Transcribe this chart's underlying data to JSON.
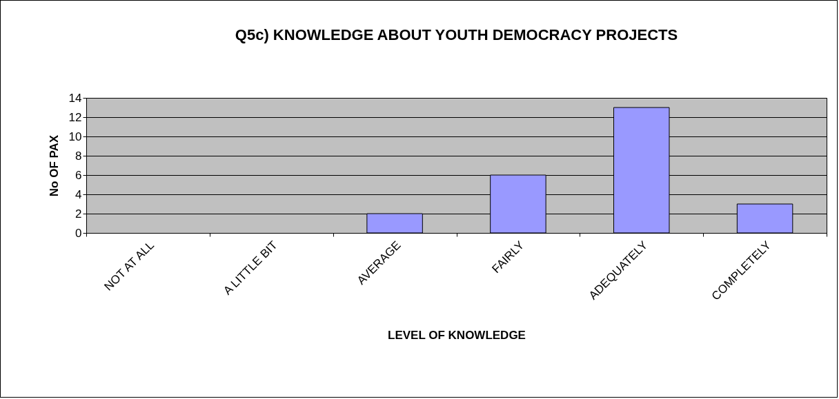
{
  "chart_data": {
    "type": "bar",
    "title": "Q5c) KNOWLEDGE ABOUT YOUTH DEMOCRACY PROJECTS",
    "xlabel": "LEVEL OF KNOWLEDGE",
    "ylabel": "No OF PAX",
    "categories": [
      "NOT AT ALL",
      "A LITTLE BIT",
      "AVERAGE",
      "FAIRLY",
      "ADEQUATELY",
      "COMPLETELY"
    ],
    "values": [
      0,
      0,
      2,
      6,
      13,
      3
    ],
    "color": "#9999ff",
    "ylim": [
      0,
      14
    ],
    "yticks": [
      0,
      2,
      4,
      6,
      8,
      10,
      12,
      14
    ],
    "grid": "y"
  }
}
